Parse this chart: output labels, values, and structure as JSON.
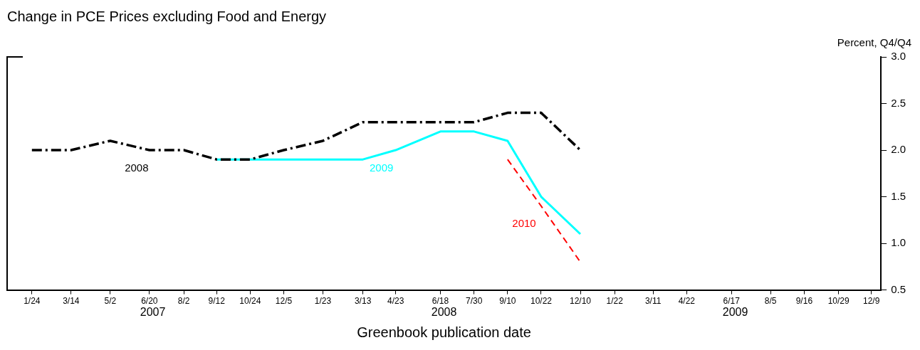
{
  "chart_data": {
    "type": "line",
    "title": "Change in PCE Prices excluding Food and Energy",
    "xlabel": "Greenbook publication date",
    "ylabel": "Percent, Q4/Q4",
    "series": [
      {
        "name": "2008",
        "color": "#000000",
        "line_style": "dashdot",
        "x": [
          "2007-01-24",
          "2007-03-14",
          "2007-05-02",
          "2007-06-20",
          "2007-08-02",
          "2007-09-12",
          "2007-10-24",
          "2007-12-05",
          "2008-01-23",
          "2008-03-13",
          "2008-04-23",
          "2008-06-18",
          "2008-07-30",
          "2008-09-10",
          "2008-10-22",
          "2008-12-10"
        ],
        "values": [
          2.0,
          2.0,
          2.1,
          2.0,
          2.0,
          1.9,
          1.9,
          2.0,
          2.1,
          2.3,
          2.3,
          2.3,
          2.3,
          2.4,
          2.4,
          2.0
        ]
      },
      {
        "name": "2009",
        "color": "#00ffff",
        "line_style": "solid",
        "x": [
          "2007-09-12",
          "2007-10-24",
          "2007-12-05",
          "2008-01-23",
          "2008-03-13",
          "2008-04-23",
          "2008-06-18",
          "2008-07-30",
          "2008-09-10",
          "2008-10-22",
          "2008-12-10"
        ],
        "values": [
          1.9,
          1.9,
          1.9,
          1.9,
          1.9,
          2.0,
          2.2,
          2.2,
          2.1,
          1.5,
          1.1
        ]
      },
      {
        "name": "2010",
        "color": "#ff0000",
        "line_style": "dashed",
        "x": [
          "2008-09-10",
          "2008-10-22",
          "2008-12-10"
        ],
        "values": [
          1.9,
          1.4,
          0.8
        ]
      }
    ],
    "xlim": [
      "2006-12-24",
      "2009-12-21"
    ],
    "xticks": [
      {
        "value": "2007-01-24",
        "label": "1/24"
      },
      {
        "value": "2007-03-14",
        "label": "3/14"
      },
      {
        "value": "2007-05-02",
        "label": "5/2"
      },
      {
        "value": "2007-06-20",
        "label": "6/20"
      },
      {
        "value": "2007-08-02",
        "label": "8/2"
      },
      {
        "value": "2007-09-12",
        "label": "9/12"
      },
      {
        "value": "2007-10-24",
        "label": "10/24"
      },
      {
        "value": "2007-12-05",
        "label": "12/5"
      },
      {
        "value": "2008-01-23",
        "label": "1/23"
      },
      {
        "value": "2008-03-13",
        "label": "3/13"
      },
      {
        "value": "2008-04-23",
        "label": "4/23"
      },
      {
        "value": "2008-06-18",
        "label": "6/18"
      },
      {
        "value": "2008-07-30",
        "label": "7/30"
      },
      {
        "value": "2008-09-10",
        "label": "9/10"
      },
      {
        "value": "2008-10-22",
        "label": "10/22"
      },
      {
        "value": "2008-12-10",
        "label": "12/10"
      },
      {
        "value": "2009-01-22",
        "label": "1/22"
      },
      {
        "value": "2009-03-11",
        "label": "3/11"
      },
      {
        "value": "2009-04-22",
        "label": "4/22"
      },
      {
        "value": "2009-06-17",
        "label": "6/17"
      },
      {
        "value": "2009-08-05",
        "label": "8/5"
      },
      {
        "value": "2009-09-16",
        "label": "9/16"
      },
      {
        "value": "2009-10-29",
        "label": "10/29"
      },
      {
        "value": "2009-12-09",
        "label": "12/9"
      }
    ],
    "ylim": [
      0.5,
      3.0
    ],
    "yticks": [
      0.5,
      {
        "value": 1,
        "label": "1.0"
      },
      1.5,
      {
        "value": 2,
        "label": "2.0"
      },
      2.5,
      {
        "value": 3,
        "label": "3.0"
      }
    ],
    "annotations": [
      "2007",
      "2008",
      "2009"
    ],
    "grid": false,
    "legend": false,
    "marker": "none"
  }
}
